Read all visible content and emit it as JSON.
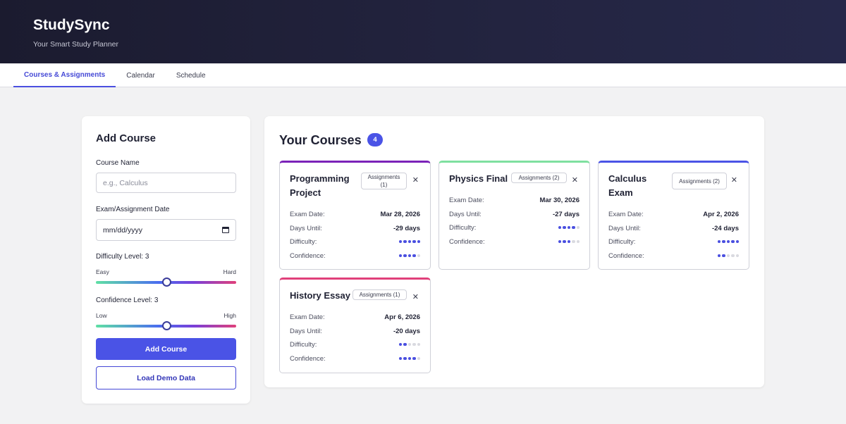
{
  "header": {
    "title": "StudySync",
    "tagline": "Your Smart Study Planner"
  },
  "tabs": [
    {
      "label": "Courses & Assignments",
      "active": true
    },
    {
      "label": "Calendar",
      "active": false
    },
    {
      "label": "Schedule",
      "active": false
    }
  ],
  "form": {
    "title": "Add Course",
    "course_name_label": "Course Name",
    "course_name_placeholder": "e.g., Calculus",
    "date_label": "Exam/Assignment Date",
    "date_placeholder": "mm/dd/yyyy",
    "difficulty_label": "Difficulty Level: 3",
    "difficulty_min": "Easy",
    "difficulty_max": "Hard",
    "difficulty_value": 3,
    "confidence_label": "Confidence Level: 3",
    "confidence_min": "Low",
    "confidence_max": "High",
    "confidence_value": 3,
    "add_button": "Add Course",
    "demo_button": "Load Demo Data"
  },
  "courses_panel": {
    "title": "Your Courses",
    "count": "4",
    "labels": {
      "exam_date": "Exam Date:",
      "days_until": "Days Until:",
      "difficulty": "Difficulty:",
      "confidence": "Confidence:"
    },
    "courses": [
      {
        "title": "Programming Project",
        "assignments": "Assignments (1)",
        "exam_date": "Mar 28, 2026",
        "days_until": "-29 days",
        "difficulty": 5,
        "confidence": 4,
        "accent": "#7b22b8"
      },
      {
        "title": "Physics Final",
        "assignments": "Assignments (2)",
        "exam_date": "Mar 30, 2026",
        "days_until": "-27 days",
        "difficulty": 4,
        "confidence": 3,
        "accent": "#7fe0a0"
      },
      {
        "title": "Calculus Exam",
        "assignments": "Assignments (2)",
        "exam_date": "Apr 2, 2026",
        "days_until": "-24 days",
        "difficulty": 5,
        "confidence": 2,
        "accent": "#4a53e6"
      },
      {
        "title": "History Essay",
        "assignments": "Assignments (1)",
        "exam_date": "Apr 6, 2026",
        "days_until": "-20 days",
        "difficulty": 2,
        "confidence": 4,
        "accent": "#e0407a"
      }
    ]
  }
}
